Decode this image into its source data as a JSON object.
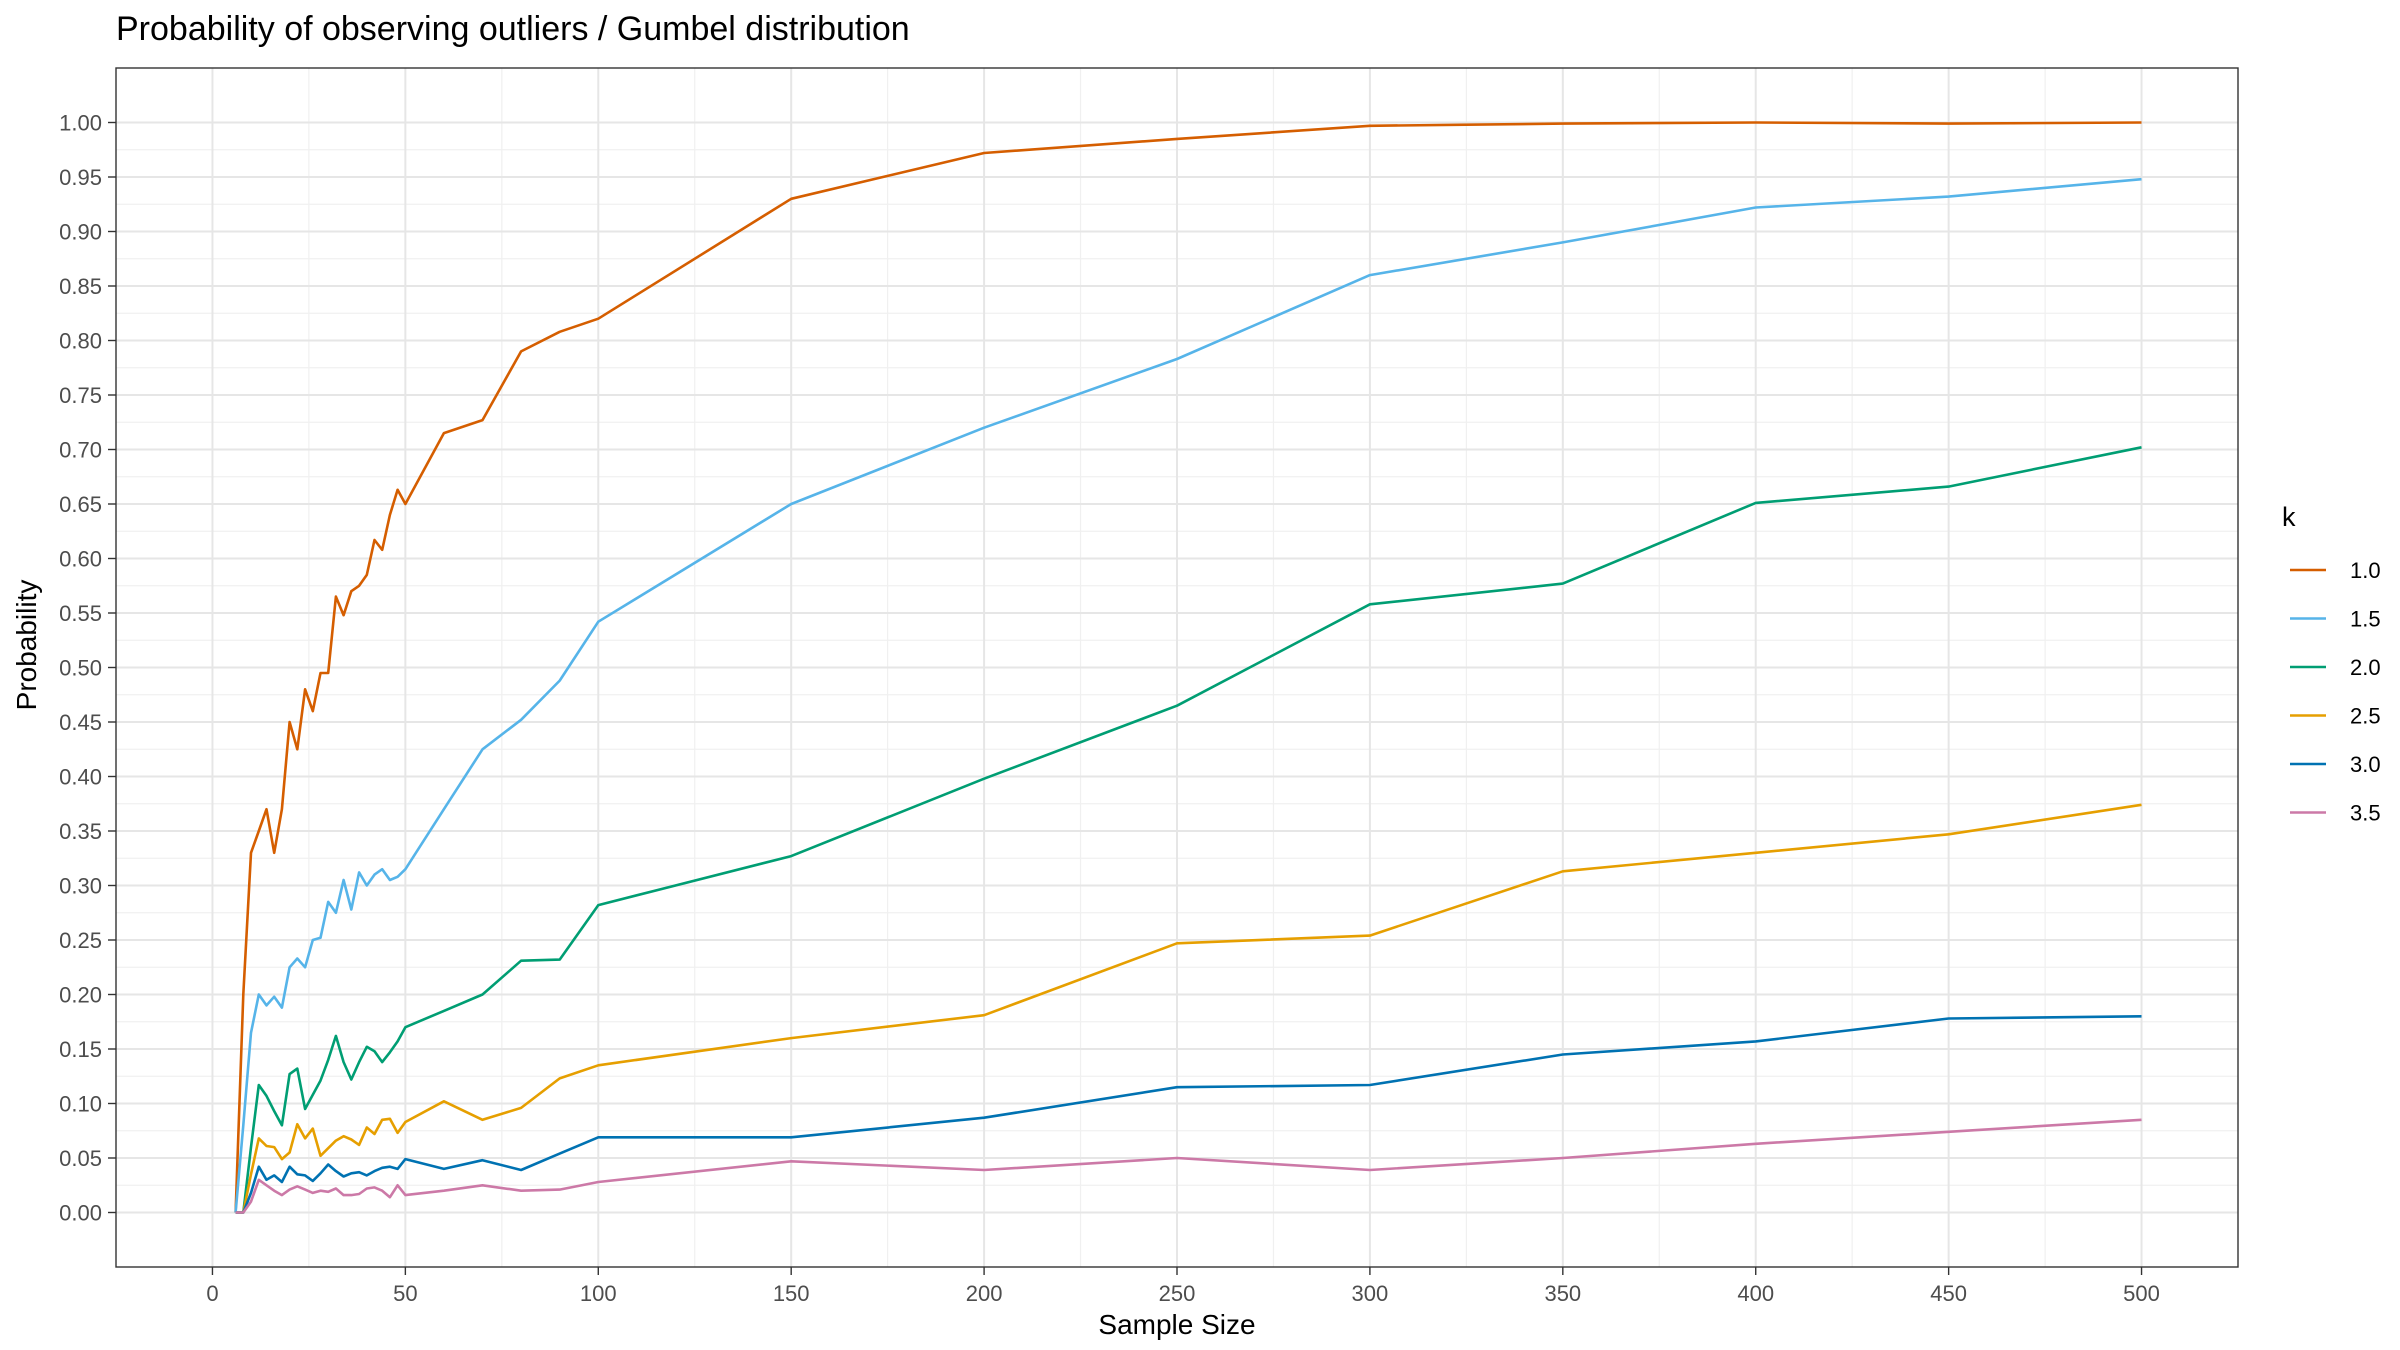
{
  "chart_data": {
    "type": "line",
    "title": "Probability of observing outliers / Gumbel distribution",
    "xlabel": "Sample Size",
    "ylabel": "Probability",
    "xlim": [
      -25,
      525
    ],
    "ylim": [
      -0.05,
      1.05
    ],
    "x_ticks": [
      0,
      50,
      100,
      150,
      200,
      250,
      300,
      350,
      400,
      450,
      500
    ],
    "x_tick_labels": [
      "0",
      "50",
      "100",
      "150",
      "200",
      "250",
      "300",
      "350",
      "400",
      "450",
      "500"
    ],
    "y_ticks": [
      0,
      0.05,
      0.1,
      0.15,
      0.2,
      0.25,
      0.3,
      0.35,
      0.4,
      0.45,
      0.5,
      0.55,
      0.6,
      0.65,
      0.7,
      0.75,
      0.8,
      0.85,
      0.9,
      0.95,
      1.0
    ],
    "y_tick_labels": [
      "0.00",
      "0.05",
      "0.10",
      "0.15",
      "0.20",
      "0.25",
      "0.30",
      "0.35",
      "0.40",
      "0.45",
      "0.50",
      "0.55",
      "0.60",
      "0.65",
      "0.70",
      "0.75",
      "0.80",
      "0.85",
      "0.90",
      "0.95",
      "1.00"
    ],
    "grid": true,
    "legend_title": "k",
    "legend_position": "right",
    "x": [
      6,
      8,
      10,
      12,
      14,
      16,
      18,
      20,
      22,
      24,
      26,
      28,
      30,
      32,
      34,
      36,
      38,
      40,
      42,
      44,
      46,
      48,
      50,
      60,
      70,
      80,
      90,
      100,
      150,
      200,
      250,
      300,
      350,
      400,
      450,
      500
    ],
    "series": [
      {
        "name": "1.0",
        "color": "#D55E00",
        "values": [
          0.0,
          0.2,
          0.33,
          0.35,
          0.37,
          0.33,
          0.37,
          0.45,
          0.425,
          0.48,
          0.46,
          0.495,
          0.495,
          0.565,
          0.548,
          0.57,
          0.575,
          0.585,
          0.617,
          0.608,
          0.64,
          0.663,
          0.65,
          0.715,
          0.727,
          0.79,
          0.808,
          0.82,
          0.93,
          0.972,
          0.985,
          0.997,
          0.999,
          1.0,
          0.999,
          1.0
        ]
      },
      {
        "name": "1.5",
        "color": "#56B4E9",
        "values": [
          0.0,
          0.08,
          0.165,
          0.2,
          0.19,
          0.198,
          0.188,
          0.225,
          0.233,
          0.225,
          0.25,
          0.252,
          0.285,
          0.275,
          0.305,
          0.278,
          0.312,
          0.3,
          0.31,
          0.315,
          0.305,
          0.308,
          0.315,
          0.37,
          0.425,
          0.452,
          0.488,
          0.542,
          0.65,
          0.72,
          0.783,
          0.86,
          0.89,
          0.922,
          0.932,
          0.948
        ]
      },
      {
        "name": "2.0",
        "color": "#009E73",
        "values": [
          0.0,
          0.0,
          0.06,
          0.117,
          0.107,
          0.093,
          0.08,
          0.127,
          0.132,
          0.095,
          0.108,
          0.121,
          0.14,
          0.162,
          0.138,
          0.122,
          0.138,
          0.152,
          0.148,
          0.138,
          0.147,
          0.157,
          0.17,
          0.185,
          0.2,
          0.231,
          0.232,
          0.282,
          0.327,
          0.398,
          0.465,
          0.558,
          0.577,
          0.651,
          0.666,
          0.702
        ]
      },
      {
        "name": "2.5",
        "color": "#E69F00",
        "values": [
          0.0,
          0.0,
          0.035,
          0.068,
          0.061,
          0.06,
          0.049,
          0.055,
          0.081,
          0.068,
          0.077,
          0.052,
          0.059,
          0.066,
          0.07,
          0.067,
          0.062,
          0.078,
          0.072,
          0.085,
          0.086,
          0.073,
          0.083,
          0.102,
          0.085,
          0.096,
          0.123,
          0.135,
          0.16,
          0.181,
          0.247,
          0.254,
          0.313,
          0.33,
          0.347,
          0.374
        ]
      },
      {
        "name": "3.0",
        "color": "#0072B2",
        "values": [
          0.0,
          0.0,
          0.018,
          0.042,
          0.03,
          0.034,
          0.028,
          0.042,
          0.035,
          0.034,
          0.029,
          0.036,
          0.044,
          0.038,
          0.033,
          0.036,
          0.037,
          0.034,
          0.038,
          0.041,
          0.042,
          0.04,
          0.049,
          0.04,
          0.048,
          0.039,
          0.054,
          0.069,
          0.069,
          0.087,
          0.115,
          0.117,
          0.145,
          0.157,
          0.178,
          0.18
        ]
      },
      {
        "name": "3.5",
        "color": "#CC79A7",
        "values": [
          0.0,
          0.0,
          0.01,
          0.03,
          0.025,
          0.02,
          0.016,
          0.021,
          0.024,
          0.021,
          0.018,
          0.02,
          0.019,
          0.022,
          0.016,
          0.016,
          0.017,
          0.022,
          0.023,
          0.02,
          0.014,
          0.025,
          0.016,
          0.02,
          0.025,
          0.02,
          0.021,
          0.028,
          0.047,
          0.039,
          0.05,
          0.039,
          0.05,
          0.063,
          0.074,
          0.085
        ]
      }
    ]
  }
}
